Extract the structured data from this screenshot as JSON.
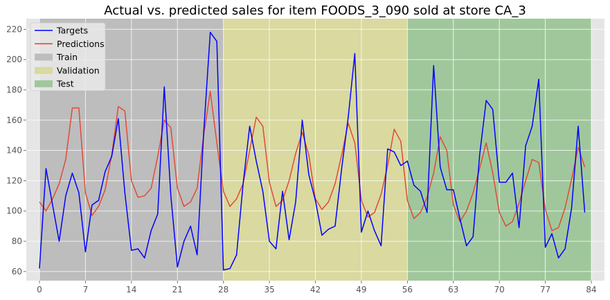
{
  "chart_data": {
    "type": "line",
    "title": "Actual vs. predicted sales for item FOODS_3_090 sold at store CA_3",
    "xlabel": "",
    "ylabel": "",
    "xlim": [
      -2,
      86
    ],
    "ylim": [
      54,
      227
    ],
    "x_ticks": [
      0,
      7,
      14,
      21,
      28,
      35,
      42,
      49,
      56,
      63,
      70,
      77,
      84
    ],
    "y_ticks": [
      60,
      80,
      100,
      120,
      140,
      160,
      180,
      200,
      220
    ],
    "grid": true,
    "legend_position": "top-left",
    "regions": [
      {
        "name": "Train",
        "start": 0,
        "end": 28,
        "color": "#bdbdbd"
      },
      {
        "name": "Validation",
        "start": 28,
        "end": 56,
        "color": "#d9d9a0"
      },
      {
        "name": "Test",
        "start": 56,
        "end": 84,
        "color": "#a0c79c"
      }
    ],
    "series": [
      {
        "name": "Targets",
        "color": "#0000ff",
        "x": [
          0,
          1,
          2,
          3,
          4,
          5,
          6,
          7,
          8,
          9,
          10,
          11,
          12,
          13,
          14,
          15,
          16,
          17,
          18,
          19,
          20,
          21,
          22,
          23,
          24,
          25,
          26,
          27,
          28,
          29,
          30,
          31,
          32,
          33,
          34,
          35,
          36,
          37,
          38,
          39,
          40,
          41,
          42,
          43,
          44,
          45,
          46,
          47,
          48,
          49,
          50,
          51,
          52,
          53,
          54,
          55,
          56,
          57,
          58,
          59,
          60,
          61,
          62,
          63,
          64,
          65,
          66,
          67,
          68,
          69,
          70,
          71,
          72,
          73,
          74,
          75,
          76,
          77,
          78,
          79,
          80,
          81,
          82,
          83
        ],
        "values": [
          62,
          128,
          104,
          80,
          110,
          125,
          112,
          73,
          104,
          107,
          126,
          136,
          161,
          112,
          74,
          75,
          69,
          87,
          98,
          182,
          110,
          63,
          80,
          90,
          71,
          152,
          218,
          212,
          61,
          62,
          71,
          118,
          156,
          133,
          113,
          80,
          75,
          113,
          81,
          106,
          160,
          124,
          107,
          84,
          88,
          90,
          128,
          162,
          204,
          86,
          100,
          87,
          77,
          141,
          139,
          130,
          133,
          117,
          113,
          99,
          196,
          129,
          114,
          114,
          95,
          77,
          83,
          137,
          173,
          167,
          119,
          119,
          125,
          89,
          143,
          156,
          187,
          76,
          85,
          69,
          75,
          102,
          156,
          99
        ]
      },
      {
        "name": "Predictions",
        "color": "#e24a33",
        "x": [
          0,
          1,
          2,
          3,
          4,
          5,
          6,
          7,
          8,
          9,
          10,
          11,
          12,
          13,
          14,
          15,
          16,
          17,
          18,
          19,
          20,
          21,
          22,
          23,
          24,
          25,
          26,
          27,
          28,
          29,
          30,
          31,
          32,
          33,
          34,
          35,
          36,
          37,
          38,
          39,
          40,
          41,
          42,
          43,
          44,
          45,
          46,
          47,
          48,
          49,
          50,
          51,
          52,
          53,
          54,
          55,
          56,
          57,
          58,
          59,
          60,
          61,
          62,
          63,
          64,
          65,
          66,
          67,
          68,
          69,
          70,
          71,
          72,
          73,
          74,
          75,
          76,
          77,
          78,
          79,
          80,
          81,
          82,
          83
        ],
        "values": [
          106,
          100,
          108,
          118,
          134,
          168,
          168,
          112,
          97,
          103,
          114,
          137,
          169,
          166,
          120,
          109,
          110,
          115,
          136,
          160,
          155,
          115,
          103,
          106,
          115,
          150,
          179,
          145,
          113,
          103,
          108,
          118,
          140,
          162,
          156,
          119,
          103,
          107,
          120,
          138,
          152,
          137,
          108,
          101,
          106,
          118,
          137,
          158,
          145,
          107,
          96,
          99,
          111,
          130,
          154,
          146,
          107,
          95,
          99,
          109,
          125,
          149,
          140,
          104,
          93,
          100,
          112,
          128,
          145,
          125,
          99,
          90,
          93,
          105,
          120,
          134,
          132,
          101,
          87,
          89,
          102,
          121,
          142,
          129
        ]
      }
    ]
  },
  "legend": {
    "items": [
      {
        "label": "Targets",
        "kind": "line",
        "color": "#0000ff"
      },
      {
        "label": "Predictions",
        "kind": "line",
        "color": "#e24a33"
      },
      {
        "label": "Train",
        "kind": "patch",
        "color": "#bdbdbd"
      },
      {
        "label": "Validation",
        "kind": "patch",
        "color": "#d9d9a0"
      },
      {
        "label": "Test",
        "kind": "patch",
        "color": "#a0c79c"
      }
    ]
  }
}
